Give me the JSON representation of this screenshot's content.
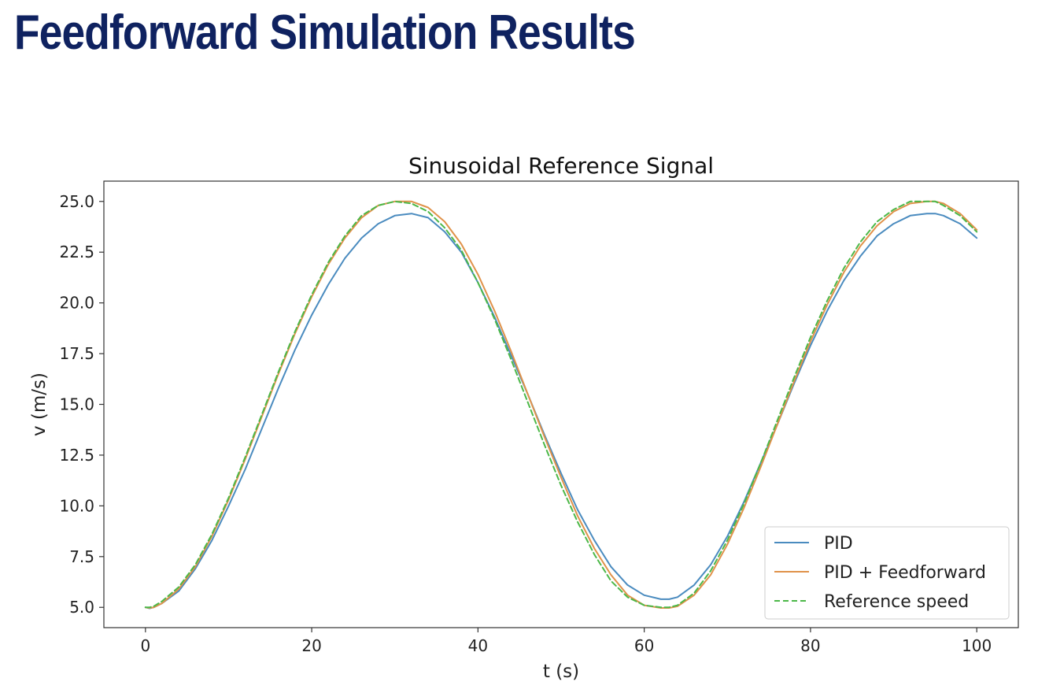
{
  "slide": {
    "title": "Feedforward Simulation Results",
    "title_color": "#0f2260"
  },
  "chart_data": {
    "type": "line",
    "title": "Sinusoidal Reference Signal",
    "xlabel": "t (s)",
    "ylabel": "v (m/s)",
    "xlim": [
      -5,
      105
    ],
    "ylim": [
      4.0,
      26.0
    ],
    "xticks": [
      0,
      20,
      40,
      60,
      80,
      100
    ],
    "xtick_labels": [
      "0",
      "20",
      "40",
      "60",
      "80",
      "100"
    ],
    "yticks": [
      5.0,
      7.5,
      10.0,
      12.5,
      15.0,
      17.5,
      20.0,
      22.5,
      25.0
    ],
    "ytick_labels": [
      "5.0",
      "7.5",
      "10.0",
      "12.5",
      "15.0",
      "17.5",
      "20.0",
      "22.5",
      "25.0"
    ],
    "grid": false,
    "legend_position": "lower right",
    "series": [
      {
        "name": "PID",
        "color": "#4a8bbf",
        "style": "solid",
        "x": [
          0,
          0.5,
          1,
          2,
          4,
          6,
          8,
          10,
          12,
          14,
          16,
          18,
          20,
          22,
          24,
          26,
          28,
          30,
          32,
          34,
          36,
          38,
          40,
          42,
          44,
          46,
          48,
          50,
          52,
          54,
          56,
          58,
          60,
          62,
          63,
          64,
          66,
          68,
          70,
          72,
          74,
          76,
          78,
          80,
          82,
          84,
          86,
          88,
          90,
          92,
          94,
          95,
          96,
          98,
          100
        ],
        "y": [
          5.0,
          4.95,
          5.0,
          5.2,
          5.8,
          6.9,
          8.3,
          10.0,
          11.8,
          13.8,
          15.8,
          17.7,
          19.4,
          20.9,
          22.2,
          23.2,
          23.9,
          24.3,
          24.4,
          24.2,
          23.5,
          22.5,
          21.0,
          19.3,
          17.4,
          15.5,
          13.5,
          11.6,
          9.8,
          8.3,
          7.0,
          6.1,
          5.6,
          5.4,
          5.4,
          5.5,
          6.1,
          7.1,
          8.5,
          10.2,
          12.1,
          14.0,
          16.0,
          17.9,
          19.6,
          21.1,
          22.3,
          23.3,
          23.9,
          24.3,
          24.4,
          24.4,
          24.3,
          23.9,
          23.2
        ]
      },
      {
        "name": "PID + Feedforward",
        "color": "#e0924a",
        "style": "solid",
        "x": [
          0,
          0.5,
          1,
          2,
          4,
          6,
          8,
          10,
          12,
          14,
          16,
          18,
          20,
          22,
          24,
          26,
          28,
          30,
          32,
          34,
          36,
          38,
          40,
          42,
          44,
          46,
          48,
          50,
          52,
          54,
          56,
          58,
          60,
          62,
          63,
          64,
          66,
          68,
          70,
          72,
          74,
          76,
          78,
          80,
          82,
          84,
          86,
          88,
          90,
          92,
          94,
          95,
          96,
          98,
          100
        ],
        "y": [
          5.0,
          4.97,
          5.0,
          5.2,
          5.9,
          7.0,
          8.5,
          10.3,
          12.3,
          14.4,
          16.5,
          18.5,
          20.3,
          21.9,
          23.2,
          24.2,
          24.8,
          25.0,
          25.0,
          24.7,
          24.0,
          22.9,
          21.4,
          19.6,
          17.6,
          15.5,
          13.4,
          11.4,
          9.5,
          7.9,
          6.6,
          5.6,
          5.1,
          4.97,
          4.97,
          5.05,
          5.6,
          6.6,
          8.1,
          9.9,
          11.9,
          14.0,
          16.1,
          18.1,
          19.9,
          21.5,
          22.8,
          23.8,
          24.5,
          24.9,
          25.0,
          25.0,
          24.9,
          24.4,
          23.6
        ]
      },
      {
        "name": "Reference speed",
        "color": "#4cb848",
        "style": "dashed",
        "x": [
          0,
          0.5,
          1,
          2,
          4,
          6,
          8,
          10,
          12,
          14,
          16,
          18,
          20,
          22,
          24,
          26,
          28,
          30,
          32,
          34,
          36,
          38,
          40,
          42,
          44,
          46,
          48,
          50,
          52,
          54,
          56,
          58,
          60,
          62,
          63,
          64,
          66,
          68,
          70,
          72,
          74,
          76,
          78,
          80,
          82,
          84,
          86,
          88,
          90,
          92,
          94,
          95,
          96,
          98,
          100
        ],
        "y": [
          5.0,
          5.0,
          5.05,
          5.3,
          6.0,
          7.1,
          8.6,
          10.4,
          12.4,
          14.5,
          16.6,
          18.6,
          20.4,
          22.0,
          23.3,
          24.3,
          24.8,
          25.0,
          24.9,
          24.5,
          23.7,
          22.6,
          21.0,
          19.2,
          17.2,
          15.1,
          13.0,
          11.0,
          9.2,
          7.6,
          6.3,
          5.5,
          5.1,
          5.0,
          5.0,
          5.1,
          5.7,
          6.8,
          8.3,
          10.1,
          12.1,
          14.2,
          16.3,
          18.3,
          20.1,
          21.7,
          23.0,
          24.0,
          24.6,
          25.0,
          25.0,
          25.0,
          24.8,
          24.3,
          23.5
        ]
      }
    ]
  }
}
